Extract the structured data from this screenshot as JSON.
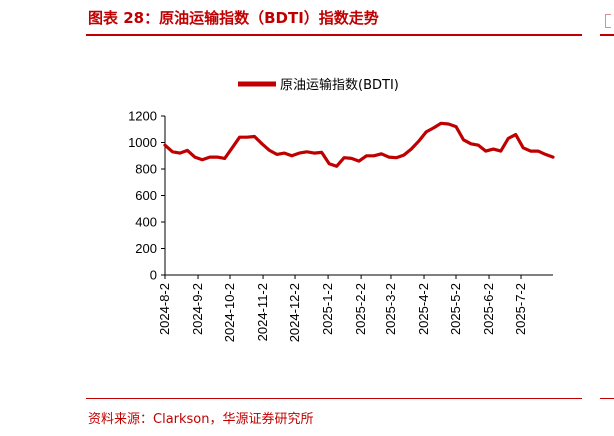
{
  "header": {
    "title": "图表 28：原油运输指数（BDTI）指数走势"
  },
  "footer": {
    "source": "资料来源：Clarkson，华源证券研究所"
  },
  "colors": {
    "accent": "#c00000",
    "series": "#c00000",
    "axis": "#000000"
  },
  "chart_data": {
    "type": "line",
    "title": "",
    "xlabel": "",
    "ylabel": "",
    "ylim": [
      0,
      1200
    ],
    "yticks": [
      0,
      200,
      400,
      600,
      800,
      1000,
      1200
    ],
    "xticks": [
      "2024-8-2",
      "2024-9-2",
      "2024-10-2",
      "2024-11-2",
      "2024-12-2",
      "2025-1-2",
      "2025-2-2",
      "2025-3-2",
      "2025-4-2",
      "2025-5-2",
      "2025-6-2",
      "2025-7-2"
    ],
    "grid": false,
    "legend_position": "top",
    "series": [
      {
        "name": "原油运输指数(BDTI)",
        "x": [
          "2024-8-2",
          "2024-8-9",
          "2024-8-16",
          "2024-8-23",
          "2024-8-30",
          "2024-9-6",
          "2024-9-13",
          "2024-9-20",
          "2024-9-27",
          "2024-10-4",
          "2024-10-11",
          "2024-10-18",
          "2024-10-25",
          "2024-11-1",
          "2024-11-8",
          "2024-11-15",
          "2024-11-22",
          "2024-11-29",
          "2024-12-6",
          "2024-12-13",
          "2024-12-20",
          "2024-12-27",
          "2025-1-3",
          "2025-1-10",
          "2025-1-17",
          "2025-1-24",
          "2025-1-31",
          "2025-2-7",
          "2025-2-14",
          "2025-2-21",
          "2025-2-28",
          "2025-3-7",
          "2025-3-14",
          "2025-3-21",
          "2025-3-28",
          "2025-4-4",
          "2025-4-11",
          "2025-4-18",
          "2025-4-25",
          "2025-5-2",
          "2025-5-9",
          "2025-5-16",
          "2025-5-23",
          "2025-5-30",
          "2025-6-6",
          "2025-6-13",
          "2025-6-20",
          "2025-6-27",
          "2025-7-4",
          "2025-7-11",
          "2025-7-18",
          "2025-7-25",
          "2025-8-1"
        ],
        "values": [
          980,
          930,
          920,
          940,
          890,
          870,
          890,
          890,
          880,
          960,
          1040,
          1040,
          1045,
          990,
          940,
          910,
          920,
          900,
          920,
          930,
          920,
          925,
          840,
          820,
          885,
          880,
          860,
          900,
          900,
          915,
          890,
          885,
          905,
          950,
          1010,
          1080,
          1110,
          1145,
          1140,
          1120,
          1020,
          990,
          980,
          935,
          950,
          935,
          1030,
          1060,
          960,
          935,
          935,
          910,
          890
        ]
      }
    ]
  }
}
